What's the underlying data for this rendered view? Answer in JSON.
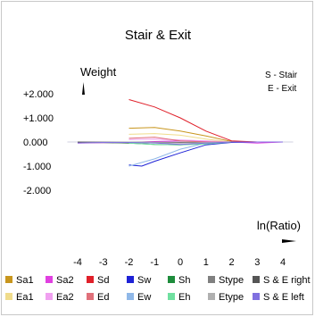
{
  "chart_data": {
    "type": "line",
    "title": "Stair & Exit",
    "ylabel": "Weight",
    "xlabel": "ln(Ratio)",
    "notes": [
      "S - Stair",
      "E - Exit"
    ],
    "x_ticks": [
      -4,
      -3,
      -2,
      -1,
      0,
      1,
      2,
      3,
      4
    ],
    "y_ticks": [
      {
        "value": 2,
        "label": "+2.000"
      },
      {
        "value": 1,
        "label": "+1.000"
      },
      {
        "value": 0,
        "label": "0.000"
      },
      {
        "value": -1,
        "label": "-1.000"
      },
      {
        "value": -2,
        "label": "-2.000"
      }
    ],
    "xlim": [
      -4.5,
      4.5
    ],
    "ylim": [
      -2.5,
      2.5
    ],
    "grid": false,
    "legend_position": "bottom",
    "series": [
      {
        "name": "Sa1",
        "color": "#c8961e",
        "x": [
          -2,
          -1,
          0,
          1,
          2,
          3,
          4
        ],
        "y": [
          0.57,
          0.6,
          0.45,
          0.25,
          0.02,
          0.0,
          0.0
        ]
      },
      {
        "name": "Sa2",
        "color": "#e040e0",
        "x": [
          -4,
          -3,
          -2,
          -1,
          0,
          1,
          2,
          3,
          4
        ],
        "y": [
          -0.05,
          -0.03,
          -0.02,
          0.02,
          0.05,
          0.03,
          0.0,
          -0.05,
          0.0
        ]
      },
      {
        "name": "Sd",
        "color": "#e0202a",
        "x": [
          -2,
          -1,
          0,
          1,
          2,
          3,
          4
        ],
        "y": [
          1.76,
          1.45,
          1.0,
          0.45,
          0.05,
          0.0,
          0.0
        ]
      },
      {
        "name": "Sw",
        "color": "#1e22d6",
        "x": [
          -2,
          -1.5,
          -1,
          0,
          1,
          2,
          3,
          4
        ],
        "y": [
          -0.95,
          -1.0,
          -0.8,
          -0.45,
          -0.12,
          -0.02,
          0.0,
          0.0
        ]
      },
      {
        "name": "Sh",
        "color": "#1e8c3c",
        "x": [
          -3,
          -2,
          -1,
          0,
          1,
          2,
          3,
          4
        ],
        "y": [
          -0.02,
          -0.05,
          -0.1,
          -0.12,
          -0.05,
          0.0,
          0.0,
          0.0
        ]
      },
      {
        "name": "Stype",
        "color": "#808080",
        "x": [
          -4,
          -2,
          0,
          2,
          4
        ],
        "y": [
          0.0,
          0.0,
          -0.02,
          0.0,
          0.0
        ]
      },
      {
        "name": "S & E right",
        "color": "#555555",
        "x": [
          -4,
          -2,
          0,
          2,
          4
        ],
        "y": [
          -0.02,
          -0.03,
          -0.03,
          0.0,
          0.0
        ]
      },
      {
        "name": "Ea1",
        "color": "#f0dc8c",
        "x": [
          -2,
          -1,
          0,
          1,
          2,
          3,
          4
        ],
        "y": [
          0.32,
          0.35,
          0.28,
          0.12,
          0.0,
          0.0,
          0.0
        ]
      },
      {
        "name": "Ea2",
        "color": "#f0a0f0",
        "x": [
          -2,
          -1,
          0,
          1,
          2,
          3,
          4
        ],
        "y": [
          0.1,
          0.12,
          0.08,
          0.05,
          0.0,
          0.0,
          0.0
        ]
      },
      {
        "name": "Ed",
        "color": "#e0707a",
        "x": [
          -2,
          -1,
          0,
          1,
          2,
          3,
          4
        ],
        "y": [
          0.15,
          0.2,
          0.05,
          0.0,
          0.0,
          0.0,
          0.0
        ]
      },
      {
        "name": "Ew",
        "color": "#90b8e8",
        "x": [
          -2,
          -1,
          0,
          1,
          2,
          3,
          4
        ],
        "y": [
          -1.0,
          -0.7,
          -0.3,
          -0.05,
          0.0,
          0.0,
          0.0
        ]
      },
      {
        "name": "Eh",
        "color": "#70e0a0",
        "x": [
          -2,
          -1,
          0,
          1,
          2,
          3,
          4
        ],
        "y": [
          -0.05,
          -0.1,
          -0.12,
          -0.08,
          0.0,
          0.0,
          0.0
        ]
      },
      {
        "name": "Etype",
        "color": "#b0b0b0",
        "x": [
          -4,
          -2,
          0,
          2,
          4
        ],
        "y": [
          0.02,
          0.0,
          -0.05,
          0.0,
          0.0
        ]
      },
      {
        "name": "S & E left",
        "color": "#8070e0",
        "x": [
          -4,
          -3,
          -2,
          -1,
          0,
          1,
          2,
          3,
          4
        ],
        "y": [
          -0.04,
          -0.02,
          -0.02,
          -0.04,
          -0.1,
          -0.05,
          0.0,
          0.0,
          0.0
        ]
      }
    ]
  }
}
